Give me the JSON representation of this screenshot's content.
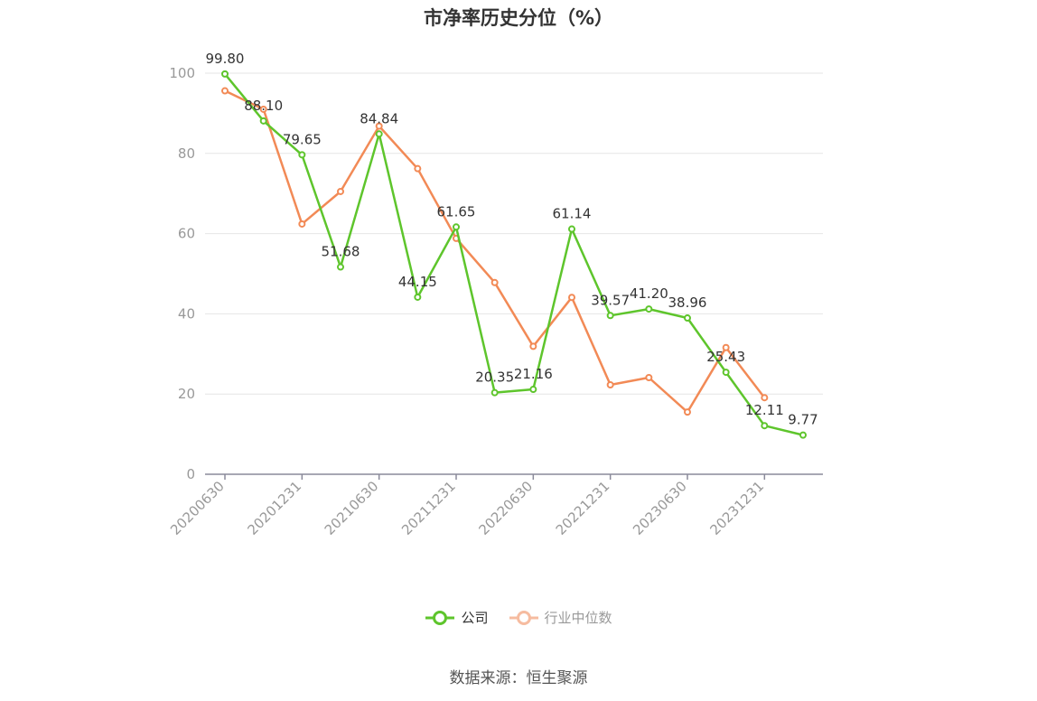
{
  "chart_data": {
    "type": "line",
    "title": "市净率历史分位（%）",
    "ylim": [
      0,
      100
    ],
    "y_ticks": [
      0,
      20,
      40,
      60,
      80,
      100
    ],
    "grid": "horizontal",
    "x": [
      "20200630",
      "20200930",
      "20201231",
      "20210331",
      "20210630",
      "20210930",
      "20211231",
      "20220331",
      "20220630",
      "20220930",
      "20221231",
      "20230331",
      "20230630",
      "20230930",
      "20231231",
      "20240331"
    ],
    "x_tick_labels": [
      "20200630",
      "20201231",
      "20210630",
      "20211231",
      "20220630",
      "20221231",
      "20230630",
      "20231231"
    ],
    "series": [
      {
        "name": "公司",
        "color": "#5ec52c",
        "values": [
          99.8,
          88.1,
          79.65,
          51.68,
          84.84,
          44.15,
          61.65,
          20.35,
          21.16,
          61.14,
          39.57,
          41.2,
          38.96,
          25.43,
          12.11,
          9.77
        ],
        "labels": [
          "99.80",
          "88.10",
          "79.65",
          "51.68",
          "84.84",
          "44.15",
          "61.65",
          "20.35",
          "21.16",
          "61.14",
          "39.57",
          "41.20",
          "38.96",
          "25.43",
          "12.11",
          "9.77"
        ]
      },
      {
        "name": "行业中位数",
        "color": "#f28a56",
        "values": [
          95.6,
          91.0,
          62.4,
          70.5,
          86.8,
          76.2,
          58.8,
          47.8,
          31.9,
          44.1,
          22.3,
          24.1,
          15.5,
          31.6,
          19.1,
          null
        ]
      }
    ],
    "legend_position": "bottom-center"
  },
  "source": "数据来源：恒生聚源"
}
